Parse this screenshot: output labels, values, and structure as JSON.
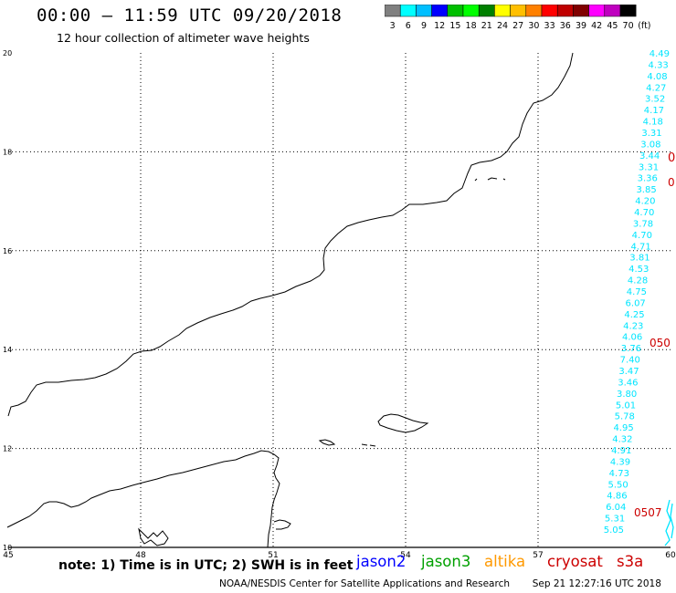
{
  "header": {
    "title": "00:00 – 11:59 UTC 09/20/2018",
    "subtitle": "12 hour collection of altimeter wave heights"
  },
  "legend": {
    "unit": "(ft)",
    "colors": [
      "#808080",
      "#00ffff",
      "#00bfff",
      "#0000ff",
      "#00bf00",
      "#00ff00",
      "#008000",
      "#ffff00",
      "#ffbf00",
      "#ff8000",
      "#ff0000",
      "#bf0000",
      "#800000",
      "#ff00ff",
      "#bf00bf",
      "#000000"
    ],
    "labels": [
      "3",
      "6",
      "9",
      "12",
      "15",
      "18",
      "21",
      "24",
      "27",
      "30",
      "33",
      "36",
      "39",
      "42",
      "45",
      "70"
    ]
  },
  "map": {
    "lon_labels": [
      "45",
      "48",
      "51",
      "54",
      "57",
      "60"
    ],
    "lat_labels": [
      "20",
      "18",
      "16",
      "14",
      "12",
      "10"
    ],
    "coastline_color": "#000000",
    "gridline_color": "#000000"
  },
  "swh_track": {
    "color": "#00e5ff",
    "values": [
      "4.49",
      "4.33",
      "4.08",
      "4.27",
      "3.52",
      "4.17",
      "4.18",
      "3.31",
      "3.08",
      "3.44",
      "3.31",
      "3.36",
      "3.85",
      "4.20",
      "4.70",
      "3.78",
      "4.70",
      "4.71",
      "3.81",
      "4.53",
      "4.28",
      "4.75",
      "6.07",
      "4.25",
      "4.23",
      "4.06",
      "3.76",
      "7.40",
      "3.47",
      "3.46",
      "3.80",
      "5.01",
      "5.78",
      "4.95",
      "4.32",
      "4.91",
      "4.39",
      "4.73",
      "5.50",
      "4.86",
      "6.04",
      "5.31",
      "5.05"
    ]
  },
  "time_labels": {
    "color": "#cc0000",
    "items": [
      "0",
      "0",
      "050",
      "0507"
    ]
  },
  "footer": {
    "note": "note: 1) Time is in UTC; 2) SWH is in feet",
    "satellites": [
      {
        "name": "jason2",
        "color": "#0000ff"
      },
      {
        "name": "jason3",
        "color": "#00a000"
      },
      {
        "name": "altika",
        "color": "#ff9900"
      },
      {
        "name": "cryosat",
        "color": "#cc0000"
      },
      {
        "name": "s3a",
        "color": "#cc0000"
      }
    ],
    "credit": "NOAA/NESDIS Center for Satellite Applications and Research",
    "timestamp": "Sep 21 12:27:16 UTC 2018"
  }
}
